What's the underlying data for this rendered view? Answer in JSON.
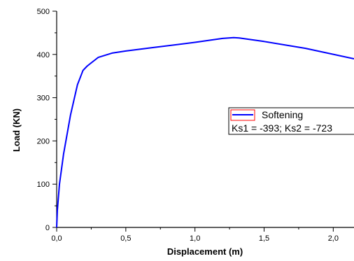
{
  "chart_data": {
    "type": "line",
    "title": "",
    "xlabel": "Displacement (m)",
    "ylabel": "Load (KN)",
    "xlim": [
      0,
      2.15
    ],
    "ylim": [
      0,
      500
    ],
    "x_ticks": [
      0,
      0.5,
      1.0,
      1.5,
      2.0
    ],
    "x_tick_labels": [
      "0,0",
      "0,5",
      "1,0",
      "1,5",
      "2,0"
    ],
    "y_ticks": [
      0,
      100,
      200,
      300,
      400,
      500
    ],
    "y_tick_labels": [
      "0",
      "100",
      "200",
      "300",
      "400",
      "500"
    ],
    "grid": false,
    "legend_position": "right",
    "legend_lines": [
      "Softening",
      "Ks1 = -393; Ks2 = -723"
    ],
    "series": [
      {
        "name": "Softening",
        "color": "#0000ff",
        "x": [
          0,
          0.005,
          0.02,
          0.05,
          0.1,
          0.15,
          0.19,
          0.22,
          0.3,
          0.4,
          0.5,
          0.7,
          1.0,
          1.2,
          1.28,
          1.32,
          1.5,
          1.8,
          2.15
        ],
        "y": [
          0,
          40,
          100,
          170,
          260,
          330,
          363,
          373,
          393,
          403,
          408,
          416,
          428,
          437,
          439,
          438,
          430,
          414,
          390
        ]
      }
    ]
  }
}
